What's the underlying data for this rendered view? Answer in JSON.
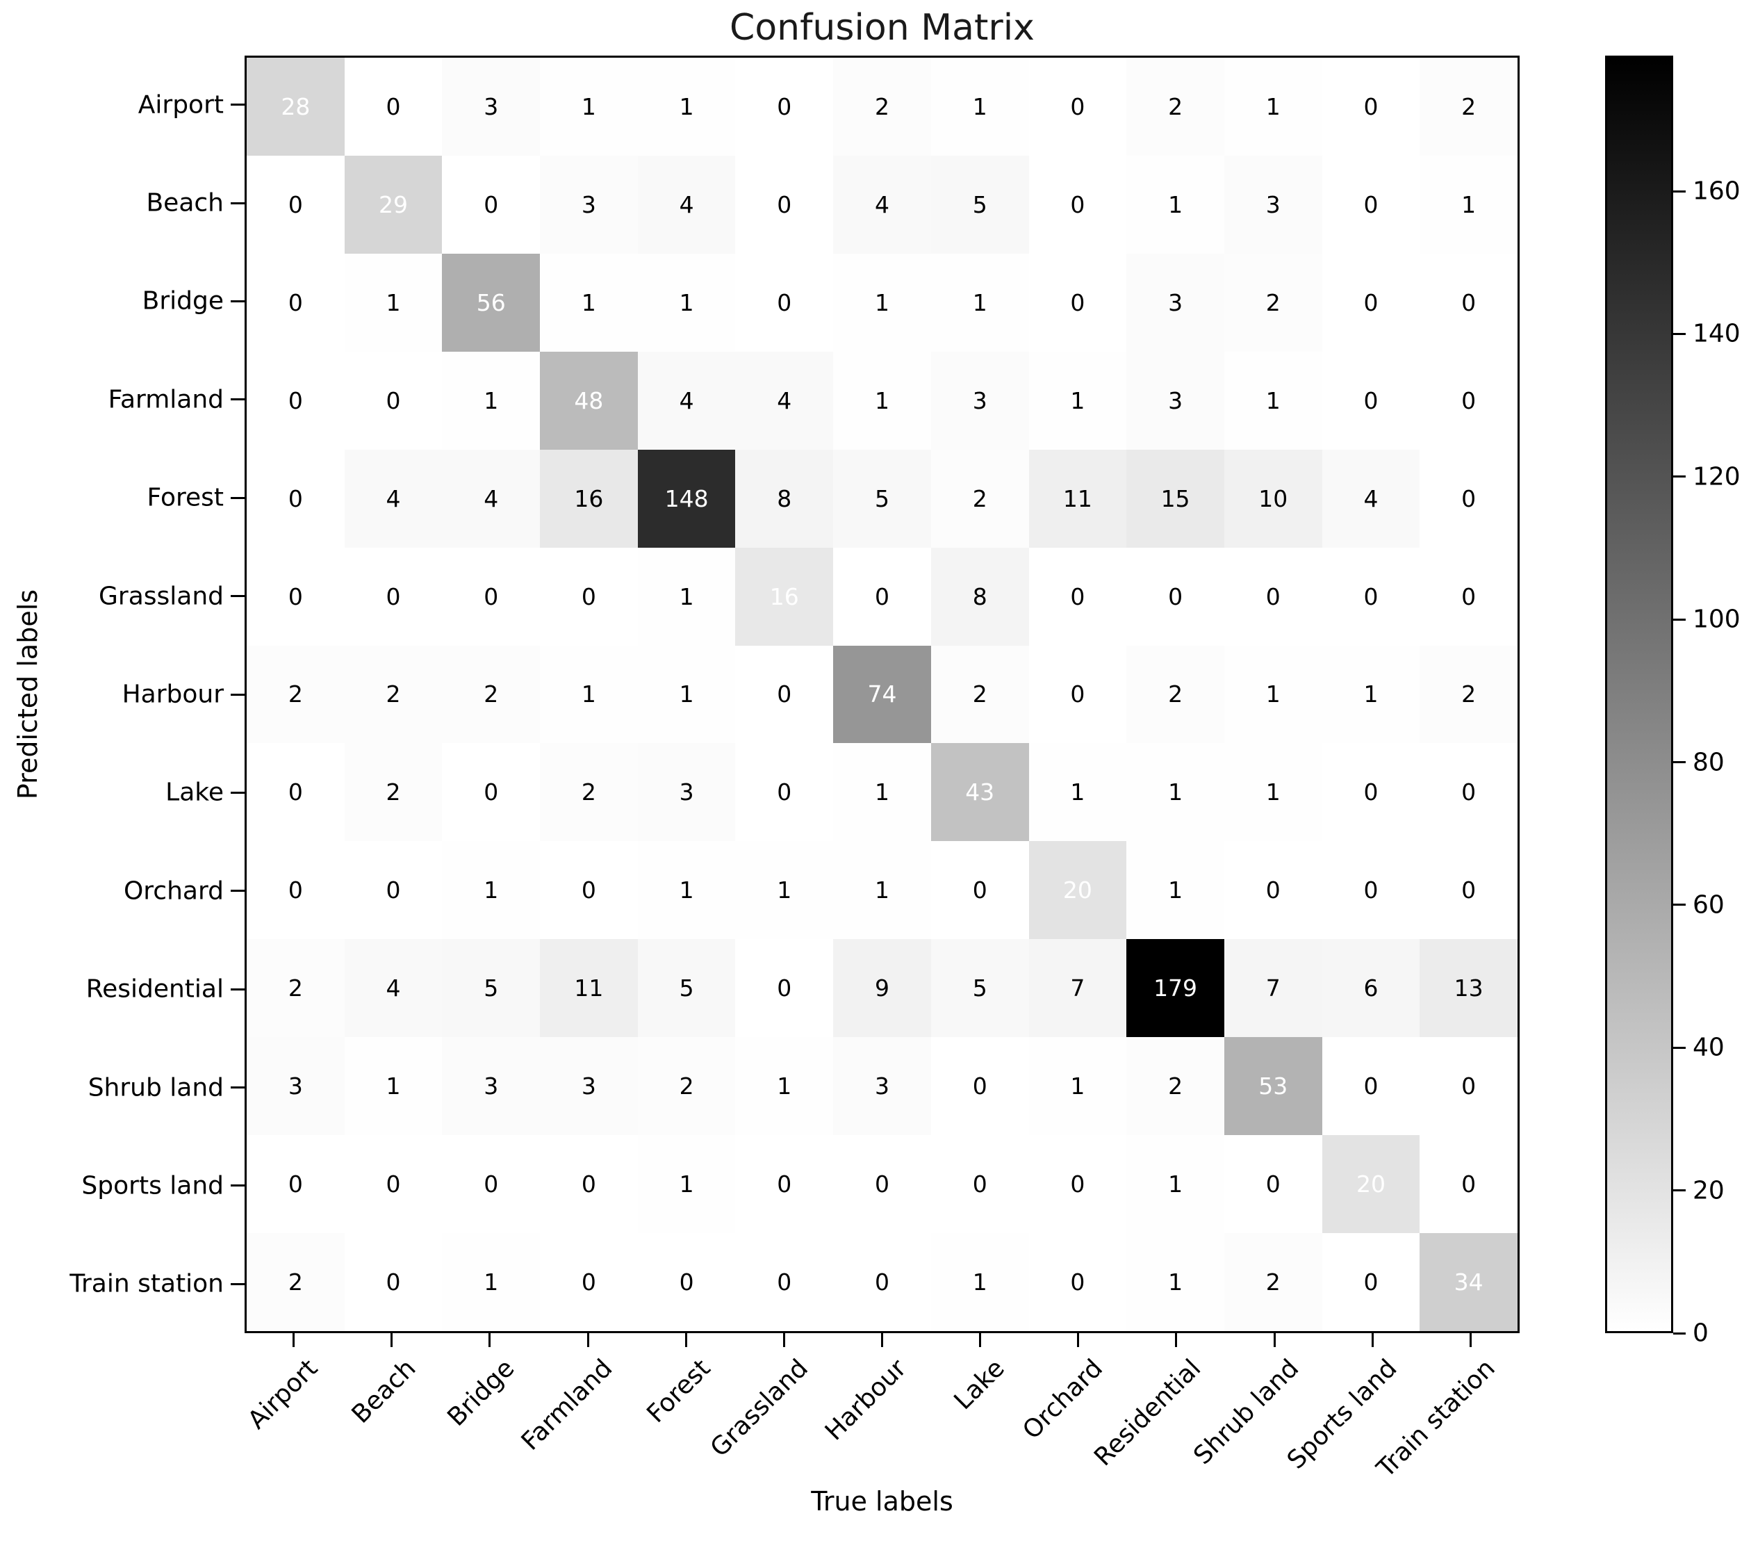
{
  "chart_data": {
    "type": "heatmap",
    "title": "Confusion Matrix",
    "xlabel": "True labels",
    "ylabel": "Predicted labels",
    "categories": [
      "Airport",
      "Beach",
      "Bridge",
      "Farmland",
      "Forest",
      "Grassland",
      "Harbour",
      "Lake",
      "Orchard",
      "Residential",
      "Shrub land",
      "Sports land",
      "Train station"
    ],
    "x_tick_labels": [
      "Airport",
      "Beach",
      "Bridge",
      "Farmland",
      "Forest",
      "Grassland",
      "Harbour",
      "Lake",
      "Orchard",
      "Residential",
      "Shrub land",
      "Sports land",
      "Train station"
    ],
    "y_tick_labels": [
      "Airport",
      "Beach",
      "Bridge",
      "Farmland",
      "Forest",
      "Grassland",
      "Harbour",
      "Lake",
      "Orchard",
      "Residential",
      "Shrub land",
      "Sports land",
      "Train station"
    ],
    "matrix": [
      [
        28,
        0,
        3,
        1,
        1,
        0,
        2,
        1,
        0,
        2,
        1,
        0,
        2
      ],
      [
        0,
        29,
        0,
        3,
        4,
        0,
        4,
        5,
        0,
        1,
        3,
        0,
        1
      ],
      [
        0,
        1,
        56,
        1,
        1,
        0,
        1,
        1,
        0,
        3,
        2,
        0,
        0
      ],
      [
        0,
        0,
        1,
        48,
        4,
        4,
        1,
        3,
        1,
        3,
        1,
        0,
        0
      ],
      [
        0,
        4,
        4,
        16,
        148,
        8,
        5,
        2,
        11,
        15,
        10,
        4,
        0
      ],
      [
        0,
        0,
        0,
        0,
        1,
        16,
        0,
        8,
        0,
        0,
        0,
        0,
        0
      ],
      [
        2,
        2,
        2,
        1,
        1,
        0,
        74,
        2,
        0,
        2,
        1,
        1,
        2
      ],
      [
        0,
        2,
        0,
        2,
        3,
        0,
        1,
        43,
        1,
        1,
        1,
        0,
        0
      ],
      [
        0,
        0,
        1,
        0,
        1,
        1,
        1,
        0,
        20,
        1,
        0,
        0,
        0
      ],
      [
        2,
        4,
        5,
        11,
        5,
        0,
        9,
        5,
        7,
        179,
        7,
        6,
        13
      ],
      [
        3,
        1,
        3,
        3,
        2,
        1,
        3,
        0,
        1,
        2,
        53,
        0,
        0
      ],
      [
        0,
        0,
        0,
        0,
        1,
        0,
        0,
        0,
        0,
        1,
        0,
        20,
        0
      ],
      [
        2,
        0,
        1,
        0,
        0,
        0,
        0,
        1,
        0,
        1,
        2,
        0,
        34
      ]
    ],
    "vmin": 0,
    "vmax": 179,
    "colorbar_ticks": [
      0,
      20,
      40,
      60,
      80,
      100,
      120,
      140,
      160
    ],
    "colormap": {
      "name": "binary (linear white to black)",
      "low": "#ffffff",
      "high": "#000000"
    },
    "cell_text_colors": {
      "diagonal": "#ffffff",
      "off_diagonal": "#000000"
    },
    "legend_position": "right-colorbar",
    "grid": false,
    "x_tick_rotation_deg": 45
  }
}
